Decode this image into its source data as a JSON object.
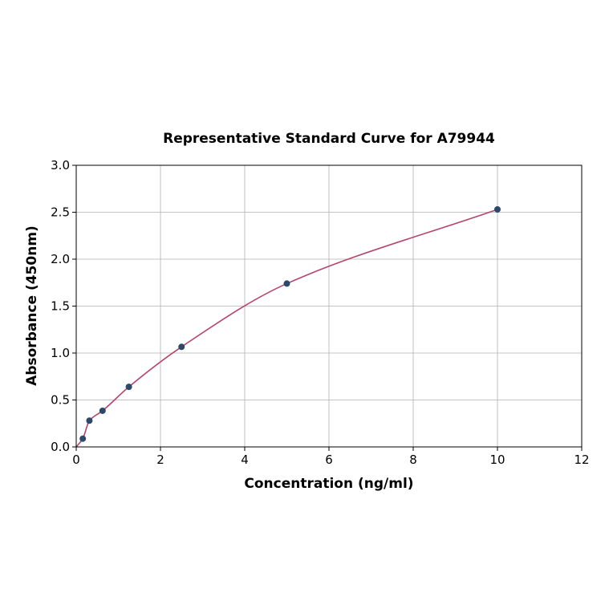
{
  "chart_data": {
    "type": "scatter",
    "title": "Representative Standard Curve for A79944",
    "xlabel": "Concentration (ng/ml)",
    "ylabel": "Absorbance (450nm)",
    "xlim": [
      0,
      12
    ],
    "ylim": [
      0,
      3.0
    ],
    "xticks": [
      "0",
      "2",
      "4",
      "6",
      "8",
      "10",
      "12"
    ],
    "yticks": [
      "0.0",
      "0.5",
      "1.0",
      "1.5",
      "2.0",
      "2.5",
      "3.0"
    ],
    "grid": true,
    "legend": "none",
    "points": {
      "x": [
        0.156,
        0.3125,
        0.625,
        1.25,
        2.5,
        5,
        10
      ],
      "y": [
        0.088,
        0.28,
        0.385,
        0.64,
        1.066,
        1.74,
        2.53
      ]
    },
    "fit_curve": "smooth fitted line through points from origin",
    "colors": {
      "points": "#2b4a6b",
      "curve": "#b5446e",
      "grid": "#b0b0b0"
    }
  }
}
